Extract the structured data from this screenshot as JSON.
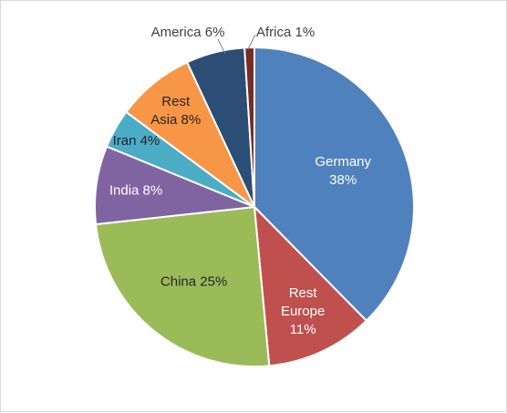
{
  "chart_data": {
    "type": "pie",
    "title": "",
    "series": [
      {
        "name": "",
        "values": [
          38,
          11,
          25,
          8,
          4,
          8,
          6,
          1
        ]
      }
    ],
    "slices": [
      {
        "label_lines": [
          "Germany",
          "38%"
        ],
        "value": 38,
        "color": "#4f81bd"
      },
      {
        "label_lines": [
          "Rest",
          "Europe",
          "11%"
        ],
        "value": 11,
        "color": "#c0504d"
      },
      {
        "label_lines": [
          "China 25%"
        ],
        "value": 25,
        "color": "#9bbb59"
      },
      {
        "label_lines": [
          "India 8%"
        ],
        "value": 8,
        "color": "#8064a2"
      },
      {
        "label_lines": [
          "Iran 4%"
        ],
        "value": 4,
        "color": "#4bacc6"
      },
      {
        "label_lines": [
          "Rest",
          "Asia 8%"
        ],
        "value": 8,
        "color": "#f79646"
      },
      {
        "label_lines": [
          "America 6%"
        ],
        "value": 6,
        "color": "#2c4d75"
      },
      {
        "label_lines": [
          "Africa 1%"
        ],
        "value": 1,
        "color": "#772c2a"
      }
    ],
    "start_direction": "top",
    "direction": "clockwise",
    "legend": "none"
  }
}
